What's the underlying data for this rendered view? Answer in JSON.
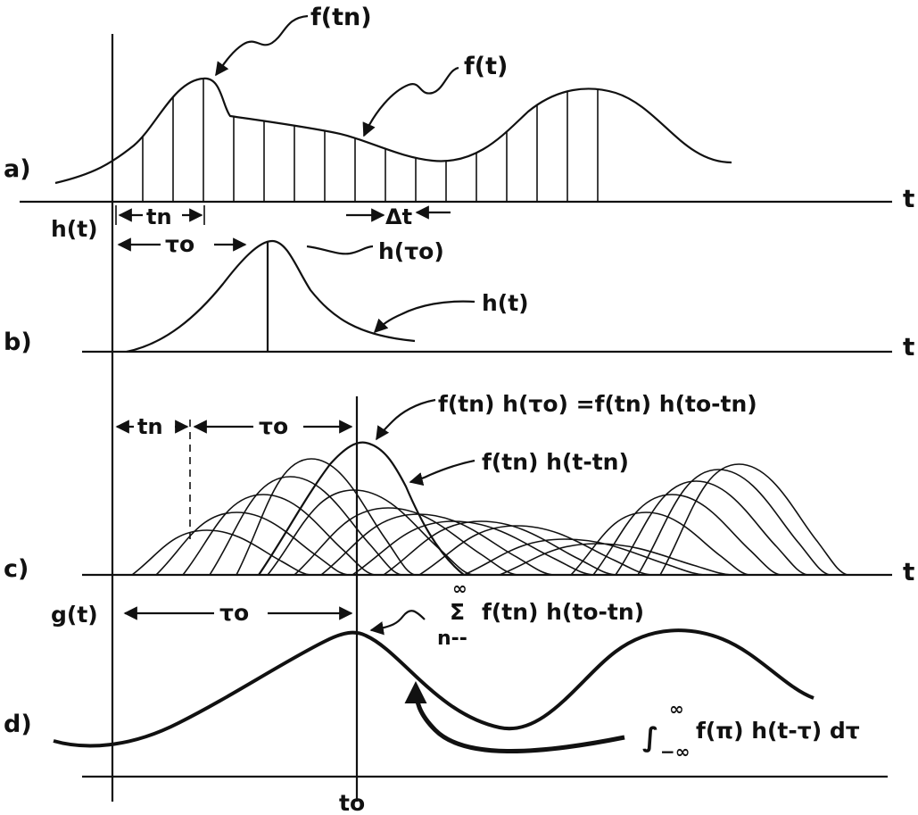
{
  "panels": {
    "a": {
      "label": "a)",
      "axis_label": "t",
      "sample_label": "f(tn)",
      "curve_label": "f(t)",
      "tn_label": "tn",
      "dt_label": "Δt"
    },
    "b": {
      "label": "b)",
      "y_label": "h(t)",
      "axis_label": "t",
      "tau_label": "τo",
      "peak_label": "h(τo)",
      "curve_label": "h(t)"
    },
    "c": {
      "label": "c)",
      "axis_label": "t",
      "tn_label": "tn",
      "tau_label": "τo",
      "product_label": "f(tn) h(τo) =f(tn) h(to-tn)",
      "shifted_label": "f(tn) h(t-tn)"
    },
    "d": {
      "label": "d)",
      "y_label": "g(t)",
      "tau_label": "τo",
      "sum_symbol": "Σ",
      "sum_upper": "∞",
      "sum_lower": "n--",
      "sum_label": "f(tn) h(to-tn)",
      "integral_symbol": "∫",
      "integral_upper": "∞",
      "integral_lower": "−∞",
      "integral_label": "f(π) h(t-τ) dτ",
      "to_label": "to"
    }
  }
}
